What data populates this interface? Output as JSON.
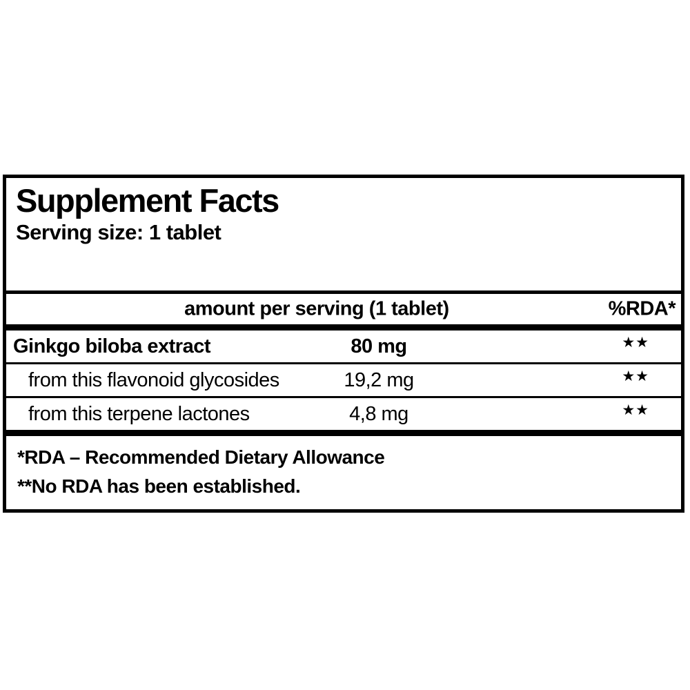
{
  "panel": {
    "title": "Supplement Facts",
    "serving_size": "Serving size: 1 tablet",
    "header": {
      "amount_label": "amount per serving (1 tablet)",
      "rda_label": "%RDA*"
    },
    "rows": [
      {
        "name": "Ginkgo biloba extract",
        "amount": "80 mg",
        "rda": "★★"
      },
      {
        "name": "from this flavonoid glycosides",
        "amount": "19,2 mg",
        "rda": "★★"
      },
      {
        "name": "from this terpene lactones",
        "amount": "4,8 mg",
        "rda": "★★"
      }
    ],
    "footnotes": [
      "*RDA – Recommended Dietary Allowance",
      "**No RDA has been established."
    ],
    "colors": {
      "text": "#000000",
      "background": "#ffffff",
      "border": "#000000"
    }
  }
}
